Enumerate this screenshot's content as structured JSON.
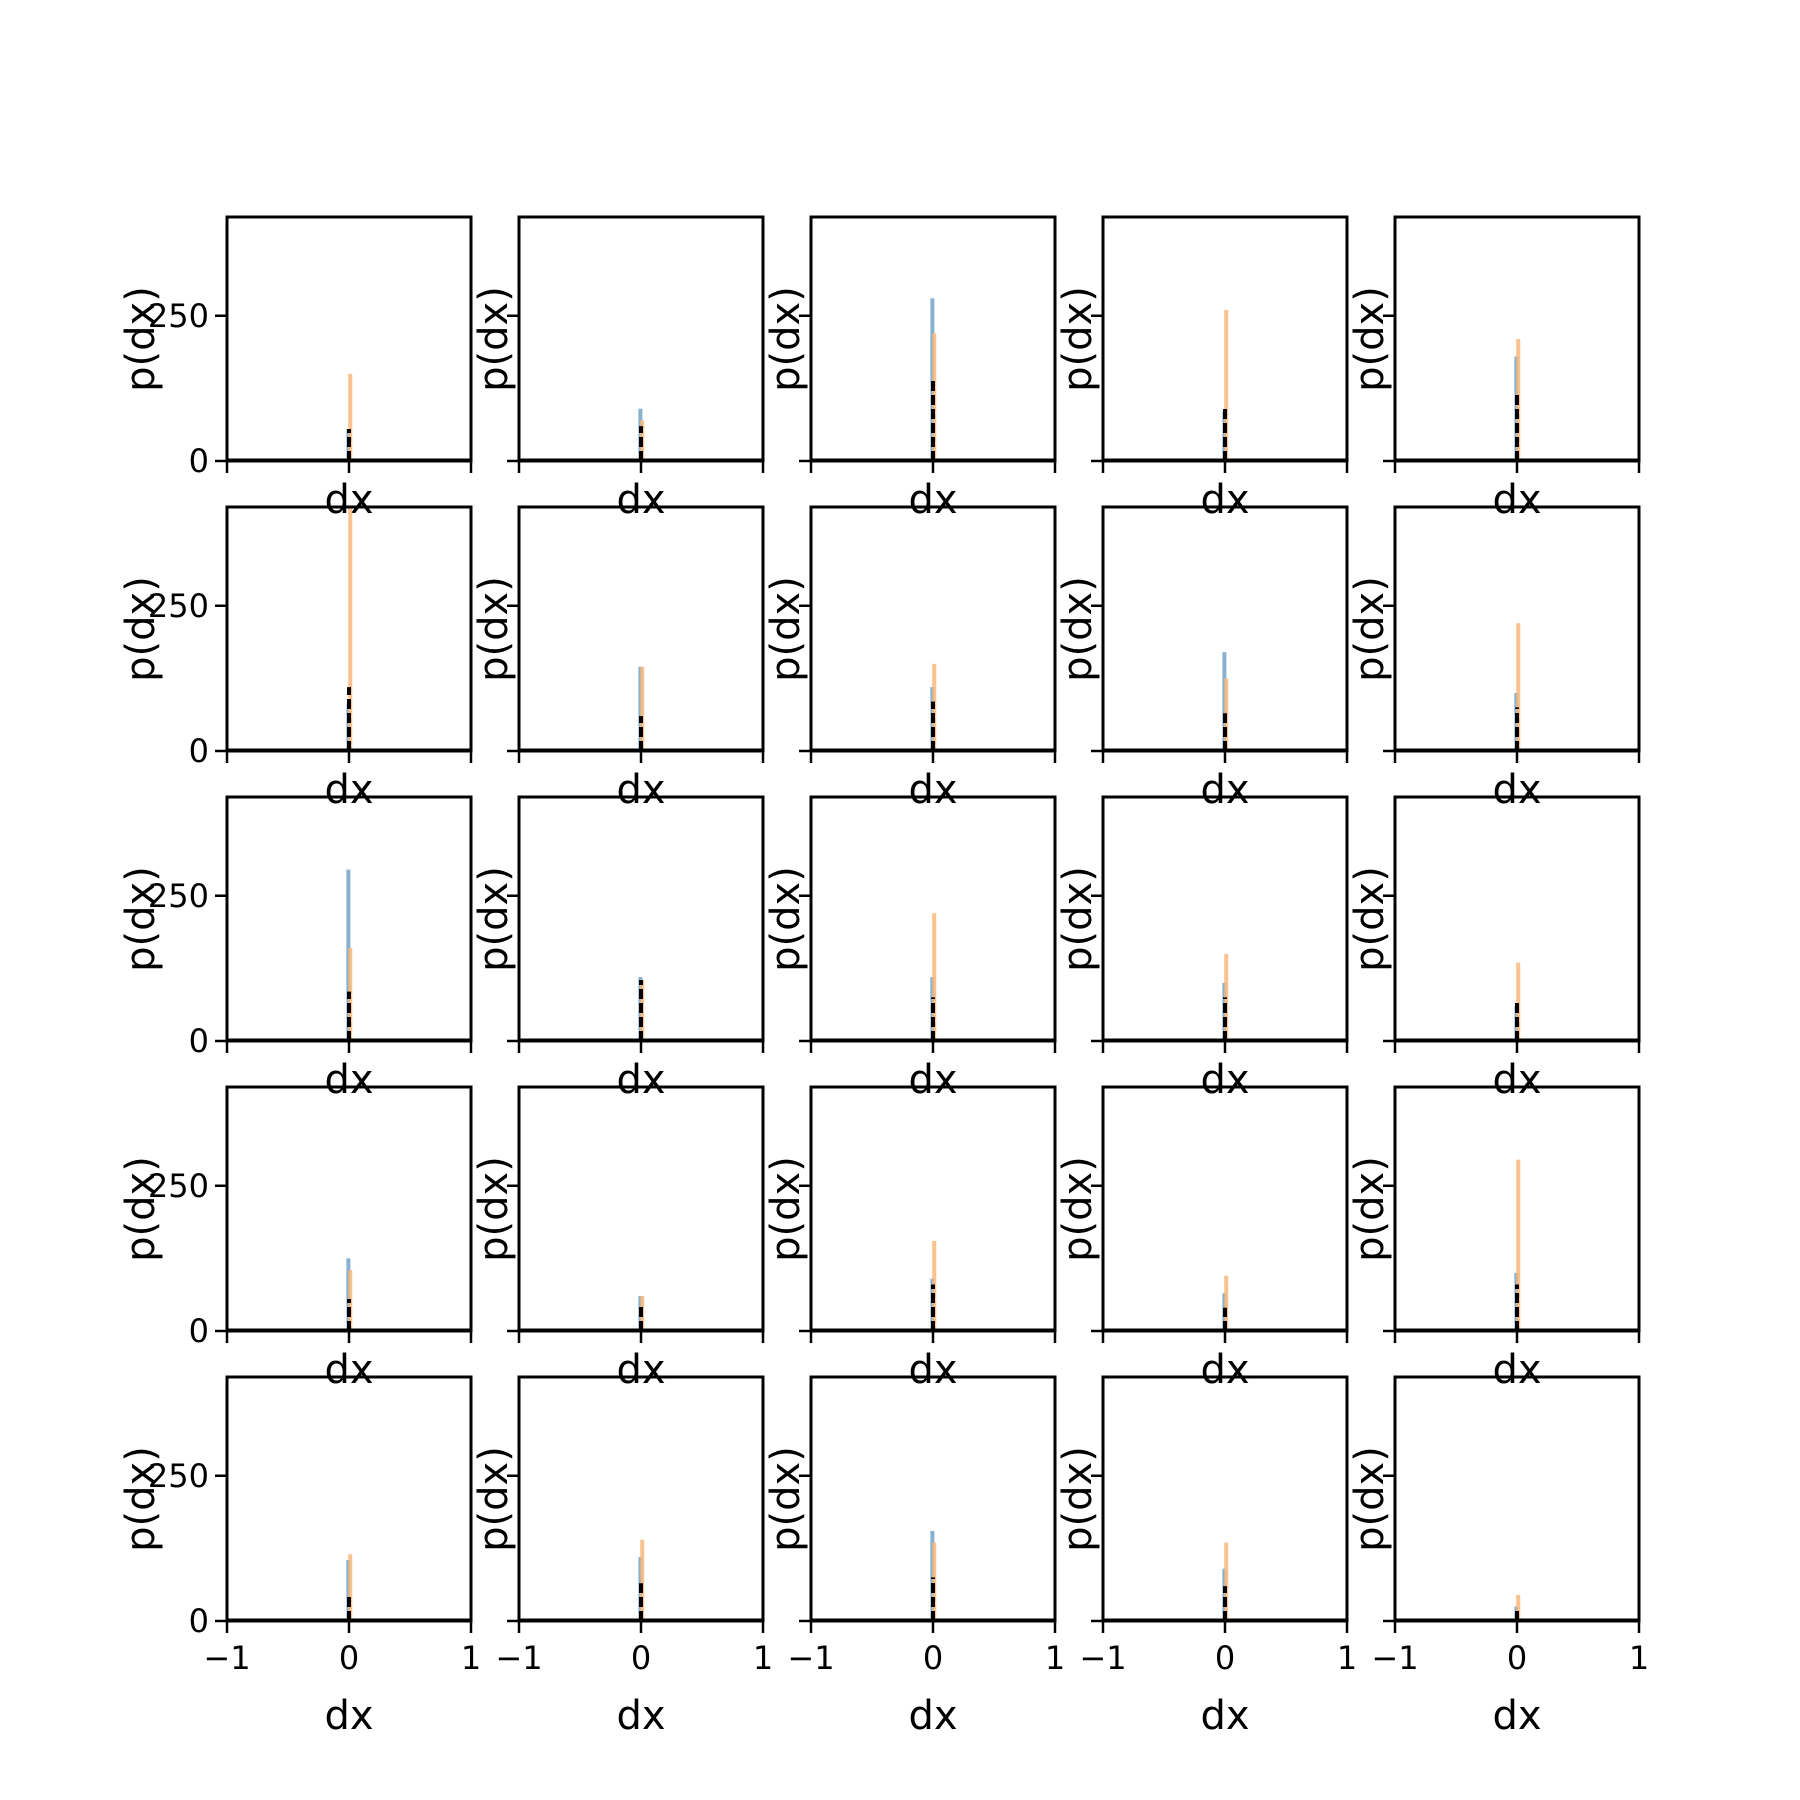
{
  "chart_data": {
    "type": "histogram-grid",
    "rows": 5,
    "cols": 5,
    "xlabel": "dx",
    "ylabel": "p(dx)",
    "xlim": [
      -1,
      1
    ],
    "ylim": [
      0,
      420
    ],
    "xticks": [
      -1,
      0,
      1
    ],
    "xtick_labels": [
      "−1",
      "0",
      "1"
    ],
    "yticks": [
      0,
      250
    ],
    "ytick_labels": [
      "0",
      "250"
    ],
    "series_colors": {
      "blue": "#7ba7cc",
      "orange": "#f8b77a",
      "line": "#000000"
    },
    "panels": [
      {
        "blue": 55,
        "orange": 150,
        "line": 55
      },
      {
        "blue": 90,
        "orange": 70,
        "line": 60
      },
      {
        "blue": 280,
        "orange": 220,
        "line": 140
      },
      {
        "blue": 85,
        "orange": 260,
        "line": 90
      },
      {
        "blue": 180,
        "orange": 210,
        "line": 120
      },
      {
        "blue": 80,
        "orange": 420,
        "line": 110
      },
      {
        "blue": 145,
        "orange": 145,
        "line": 60
      },
      {
        "blue": 110,
        "orange": 150,
        "line": 85
      },
      {
        "blue": 170,
        "orange": 125,
        "line": 65
      },
      {
        "blue": 100,
        "orange": 220,
        "line": 75
      },
      {
        "blue": 295,
        "orange": 160,
        "line": 85
      },
      {
        "blue": 110,
        "orange": 105,
        "line": 105
      },
      {
        "blue": 110,
        "orange": 220,
        "line": 75
      },
      {
        "blue": 100,
        "orange": 150,
        "line": 75
      },
      {
        "blue": 60,
        "orange": 135,
        "line": 70
      },
      {
        "blue": 125,
        "orange": 105,
        "line": 55
      },
      {
        "blue": 60,
        "orange": 60,
        "line": 45
      },
      {
        "blue": 90,
        "orange": 155,
        "line": 80
      },
      {
        "blue": 65,
        "orange": 95,
        "line": 40
      },
      {
        "blue": 100,
        "orange": 295,
        "line": 80
      },
      {
        "blue": 105,
        "orange": 115,
        "line": 45
      },
      {
        "blue": 110,
        "orange": 140,
        "line": 65
      },
      {
        "blue": 155,
        "orange": 135,
        "line": 75
      },
      {
        "blue": 90,
        "orange": 135,
        "line": 60
      },
      {
        "blue": 25,
        "orange": 45,
        "line": 20
      }
    ]
  }
}
